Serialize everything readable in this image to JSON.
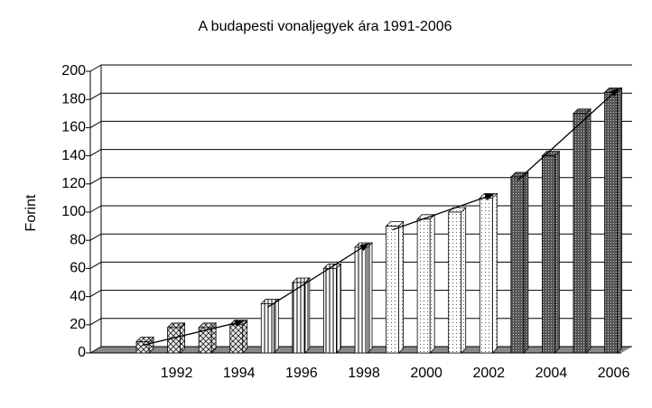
{
  "chart_data": {
    "type": "bar",
    "title": "A budapesti vonaljegyek ára 1991-2006",
    "y_label": "Forint",
    "categories": [
      null,
      "1992",
      null,
      "1994",
      null,
      "1996",
      null,
      "1998",
      null,
      "2000",
      null,
      "2002",
      null,
      "2004",
      null,
      "2006"
    ],
    "values": [
      8,
      18,
      18,
      20,
      35,
      50,
      60,
      75,
      90,
      95,
      100,
      110,
      125,
      140,
      170,
      185
    ],
    "ylim": [
      0,
      200
    ],
    "yticks": [
      0,
      20,
      40,
      60,
      80,
      100,
      120,
      140,
      160,
      180,
      200
    ],
    "grid": true
  }
}
